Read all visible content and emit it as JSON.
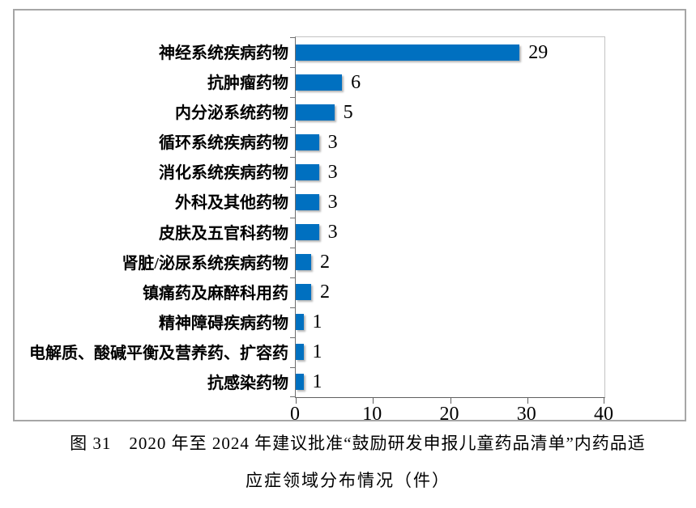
{
  "figure": {
    "caption_line1": "图 31　2020 年至 2024 年建议批准“鼓励研发申报儿童药品清单”内药品适",
    "caption_line2": "应症领域分布情况（件）"
  },
  "colors": {
    "bar": "#0070c0",
    "frame_border": "#a6a6a6",
    "plot_border": "#c3c3c3",
    "axis": "#6e6e6e",
    "text": "#000000"
  },
  "chart_data": {
    "type": "bar",
    "orientation": "horizontal",
    "title": "",
    "xlabel": "",
    "ylabel": "",
    "categories": [
      "神经系统疾病药物",
      "抗肿瘤药物",
      "内分泌系统药物",
      "循环系统疾病药物",
      "消化系统疾病药物",
      "外科及其他药物",
      "皮肤及五官科药物",
      "肾脏/泌尿系统疾病药物",
      "镇痛药及麻醉科用药",
      "精神障碍疾病药物",
      "电解质、酸碱平衡及营养药、扩容药",
      "抗感染药物"
    ],
    "values": [
      29,
      6,
      5,
      3,
      3,
      3,
      3,
      2,
      2,
      1,
      1,
      1
    ],
    "data_labels": true,
    "x_ticks": [
      0,
      10,
      20,
      30,
      40
    ],
    "xlim": [
      0,
      40
    ],
    "grid": false,
    "legend": false
  }
}
